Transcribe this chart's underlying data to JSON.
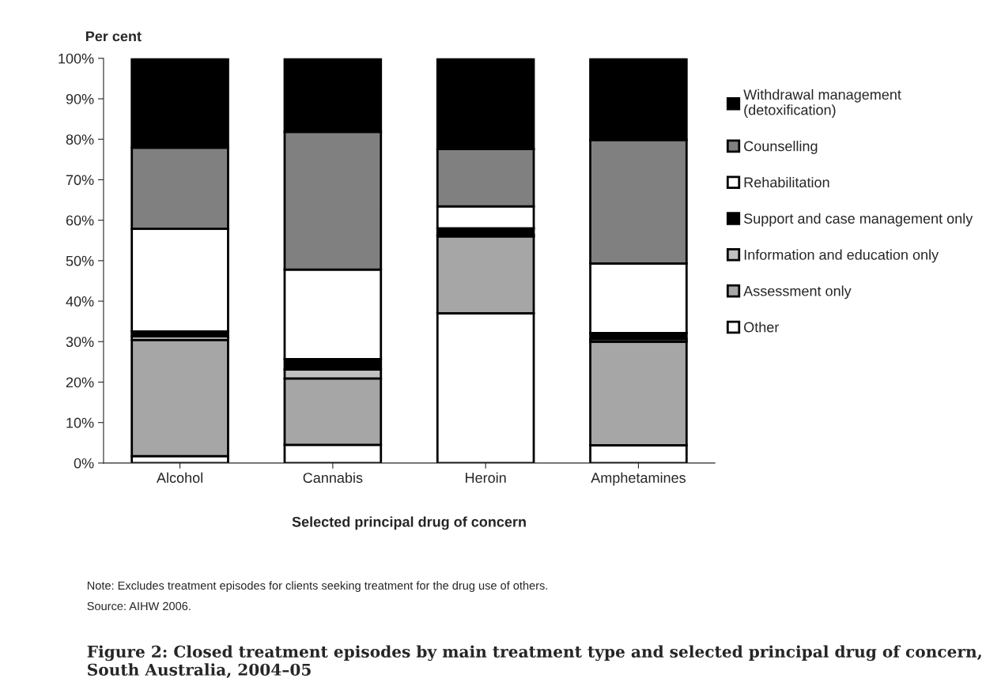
{
  "chart_data": {
    "type": "bar",
    "stacked": true,
    "title": "Figure 2: Closed treatment episodes by main treatment type and selected principal drug of concern, South Australia, 2004–05",
    "xlabel": "Selected principal drug of concern",
    "ylabel": "Per cent",
    "categories": [
      "Alcohol",
      "Cannabis",
      "Heroin",
      "Amphetamines"
    ],
    "series": [
      {
        "name": "Other",
        "color": "#ffffff",
        "values": [
          1.7,
          4.5,
          37.0,
          4.4
        ]
      },
      {
        "name": "Assessment only",
        "color": "#a6a6a6",
        "values": [
          28.7,
          16.4,
          19.0,
          25.6
        ]
      },
      {
        "name": "Information and education only",
        "color": "#c0c0c0",
        "values": [
          0.9,
          2.2,
          0.4,
          0.6
        ]
      },
      {
        "name": "Support and case management only",
        "color": "#000000",
        "values": [
          1.2,
          2.6,
          1.6,
          1.5
        ]
      },
      {
        "name": "Rehabilitation",
        "color": "#ffffff",
        "values": [
          25.4,
          22.1,
          5.4,
          17.2
        ]
      },
      {
        "name": "Counselling",
        "color": "#808080",
        "values": [
          20.0,
          34.0,
          14.2,
          30.5
        ]
      },
      {
        "name": "Withdrawal management\n(detoxification)",
        "color": "#000000",
        "values": [
          22.1,
          18.2,
          22.4,
          20.2
        ]
      }
    ],
    "ylim": [
      0,
      100
    ],
    "yticks": [
      {
        "value": 0,
        "label": "0%"
      },
      {
        "value": 10,
        "label": "10%"
      },
      {
        "value": 20,
        "label": "20%"
      },
      {
        "value": 30,
        "label": "30%"
      },
      {
        "value": 40,
        "label": "40%"
      },
      {
        "value": 50,
        "label": "50%"
      },
      {
        "value": 60,
        "label": "60%"
      },
      {
        "value": 70,
        "label": "70%"
      },
      {
        "value": 80,
        "label": "80%"
      },
      {
        "value": 90,
        "label": "90%"
      },
      {
        "value": 100,
        "label": "100%"
      }
    ],
    "grid": false,
    "legend": "right",
    "annotations": [
      "Note: Excludes treatment episodes for clients seeking treatment for the drug use of others.",
      "Source: AIHW 2006."
    ]
  }
}
